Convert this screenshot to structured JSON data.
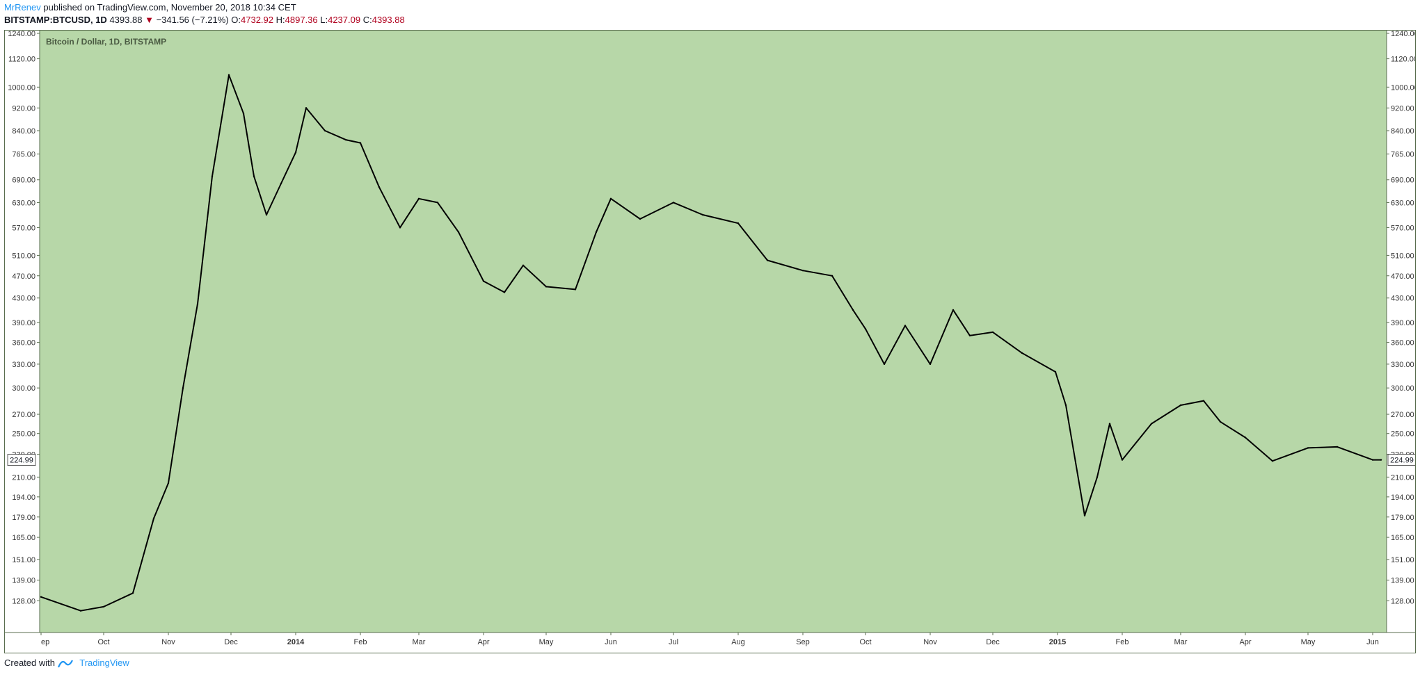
{
  "header": {
    "author": "MrRenev",
    "published_text": "published on TradingView.com, November 20, 2018 10:34 CET",
    "symbol_line": "BITSTAMP:BTCUSD, 1D",
    "last": "4393.88",
    "change_arrow": "▼",
    "change": "−341.56 (−7.21%)",
    "o_label": "O:",
    "o": "4732.92",
    "h_label": "H:",
    "h": "4897.36",
    "l_label": "L:",
    "l": "4237.09",
    "c_label": "C:",
    "c": "4393.88"
  },
  "footer": {
    "created_with": "Created with",
    "brand": "TradingView"
  },
  "colors": {
    "plot_bg": "#b7d7a8",
    "candle": "#000000",
    "axis_text": "#333333",
    "frame": "#5a6e4f"
  },
  "chart_data": {
    "type": "line",
    "title": "Bitcoin / Dollar, 1D, BITSTAMP",
    "price_label": "224.99",
    "y_scale": "log",
    "ylim": [
      114,
      1240
    ],
    "y_ticks": [
      "1240.00",
      "1120.00",
      "1000.00",
      "920.00",
      "840.00",
      "765.00",
      "690.00",
      "630.00",
      "570.00",
      "510.00",
      "470.00",
      "430.00",
      "390.00",
      "360.00",
      "330.00",
      "300.00",
      "270.00",
      "250.00",
      "230.00",
      "210.00",
      "194.00",
      "179.00",
      "165.00",
      "151.00",
      "139.00",
      "128.00"
    ],
    "x_ticks": [
      "ep",
      "Oct",
      "Nov",
      "Dec",
      "2014",
      "Feb",
      "Mar",
      "Apr",
      "May",
      "Jun",
      "Jul",
      "Aug",
      "Sep",
      "Oct",
      "Nov",
      "Dec",
      "2015",
      "Feb",
      "Mar",
      "Apr",
      "May",
      "Jun"
    ],
    "x": [
      "2013-09-01",
      "2013-09-20",
      "2013-10-01",
      "2013-10-15",
      "2013-10-25",
      "2013-11-01",
      "2013-11-08",
      "2013-11-15",
      "2013-11-22",
      "2013-11-30",
      "2013-12-07",
      "2013-12-12",
      "2013-12-18",
      "2013-12-25",
      "2014-01-01",
      "2014-01-06",
      "2014-01-15",
      "2014-01-25",
      "2014-02-01",
      "2014-02-10",
      "2014-02-20",
      "2014-03-01",
      "2014-03-10",
      "2014-03-20",
      "2014-04-01",
      "2014-04-11",
      "2014-04-20",
      "2014-05-01",
      "2014-05-15",
      "2014-05-25",
      "2014-06-01",
      "2014-06-15",
      "2014-07-01",
      "2014-07-15",
      "2014-08-01",
      "2014-08-15",
      "2014-09-01",
      "2014-09-15",
      "2014-09-25",
      "2014-10-01",
      "2014-10-10",
      "2014-10-20",
      "2014-11-01",
      "2014-11-12",
      "2014-11-20",
      "2014-12-01",
      "2014-12-15",
      "2014-12-31",
      "2015-01-05",
      "2015-01-14",
      "2015-01-20",
      "2015-01-26",
      "2015-02-01",
      "2015-02-15",
      "2015-03-01",
      "2015-03-12",
      "2015-03-20",
      "2015-04-01",
      "2015-04-14",
      "2015-05-01",
      "2015-05-15",
      "2015-06-01",
      "2015-06-05"
    ],
    "values": [
      130,
      123,
      125,
      132,
      178,
      205,
      300,
      420,
      700,
      1050,
      900,
      700,
      600,
      680,
      770,
      920,
      840,
      810,
      800,
      670,
      570,
      640,
      630,
      560,
      460,
      440,
      490,
      450,
      445,
      560,
      640,
      590,
      630,
      600,
      580,
      500,
      480,
      470,
      410,
      380,
      330,
      385,
      330,
      410,
      370,
      375,
      345,
      320,
      280,
      180,
      210,
      260,
      225,
      260,
      280,
      285,
      262,
      246,
      224,
      236,
      237,
      225,
      224.99
    ]
  }
}
